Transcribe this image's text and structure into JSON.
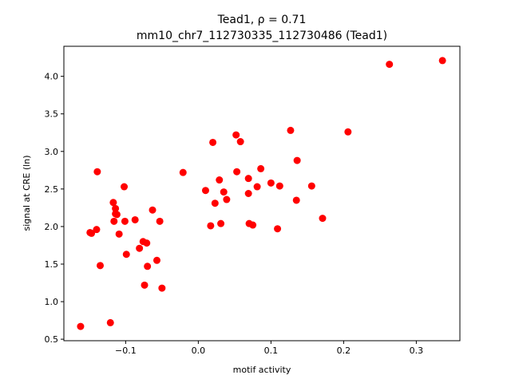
{
  "chart_data": {
    "type": "scatter",
    "title_line1": "Tead1, ρ = 0.71",
    "title_line2": "mm10_chr7_112730335_112730486 (Tead1)",
    "xlabel": "motif activity",
    "ylabel": "signal at CRE (ln)",
    "xlim": [
      -0.185,
      0.36
    ],
    "ylim": [
      0.48,
      4.4
    ],
    "xticks": [
      -0.1,
      0.0,
      0.1,
      0.2,
      0.3
    ],
    "xtick_labels": [
      "−0.1",
      "0.0",
      "0.1",
      "0.2",
      "0.3"
    ],
    "yticks": [
      0.5,
      1.0,
      1.5,
      2.0,
      2.5,
      3.0,
      3.5,
      4.0
    ],
    "ytick_labels": [
      "0.5",
      "1.0",
      "1.5",
      "2.0",
      "2.5",
      "3.0",
      "3.5",
      "4.0"
    ],
    "grid": false,
    "marker_color": "#ff0000",
    "series": [
      {
        "points": [
          [
            -0.162,
            0.67
          ],
          [
            -0.121,
            0.72
          ],
          [
            -0.149,
            1.92
          ],
          [
            -0.147,
            1.91
          ],
          [
            -0.14,
            1.96
          ],
          [
            -0.139,
            2.73
          ],
          [
            -0.135,
            1.48
          ],
          [
            -0.117,
            2.32
          ],
          [
            -0.116,
            2.07
          ],
          [
            -0.114,
            2.24
          ],
          [
            -0.114,
            2.17
          ],
          [
            -0.112,
            2.16
          ],
          [
            -0.109,
            1.9
          ],
          [
            -0.102,
            2.53
          ],
          [
            -0.101,
            2.07
          ],
          [
            -0.099,
            1.63
          ],
          [
            -0.087,
            2.09
          ],
          [
            -0.081,
            1.71
          ],
          [
            -0.076,
            1.8
          ],
          [
            -0.074,
            1.22
          ],
          [
            -0.071,
            1.78
          ],
          [
            -0.07,
            1.47
          ],
          [
            -0.063,
            2.22
          ],
          [
            -0.057,
            1.55
          ],
          [
            -0.053,
            2.07
          ],
          [
            -0.05,
            1.18
          ],
          [
            -0.021,
            2.72
          ],
          [
            0.01,
            2.48
          ],
          [
            0.017,
            2.01
          ],
          [
            0.02,
            3.12
          ],
          [
            0.023,
            2.31
          ],
          [
            0.029,
            2.62
          ],
          [
            0.031,
            2.04
          ],
          [
            0.035,
            2.46
          ],
          [
            0.039,
            2.36
          ],
          [
            0.052,
            3.22
          ],
          [
            0.053,
            2.73
          ],
          [
            0.058,
            3.13
          ],
          [
            0.069,
            2.64
          ],
          [
            0.069,
            2.44
          ],
          [
            0.07,
            2.04
          ],
          [
            0.075,
            2.02
          ],
          [
            0.081,
            2.53
          ],
          [
            0.086,
            2.77
          ],
          [
            0.1,
            2.58
          ],
          [
            0.109,
            1.97
          ],
          [
            0.112,
            2.54
          ],
          [
            0.127,
            3.28
          ],
          [
            0.135,
            2.35
          ],
          [
            0.136,
            2.88
          ],
          [
            0.156,
            2.54
          ],
          [
            0.171,
            2.11
          ],
          [
            0.206,
            3.26
          ],
          [
            0.263,
            4.16
          ],
          [
            0.336,
            4.21
          ]
        ]
      }
    ]
  }
}
